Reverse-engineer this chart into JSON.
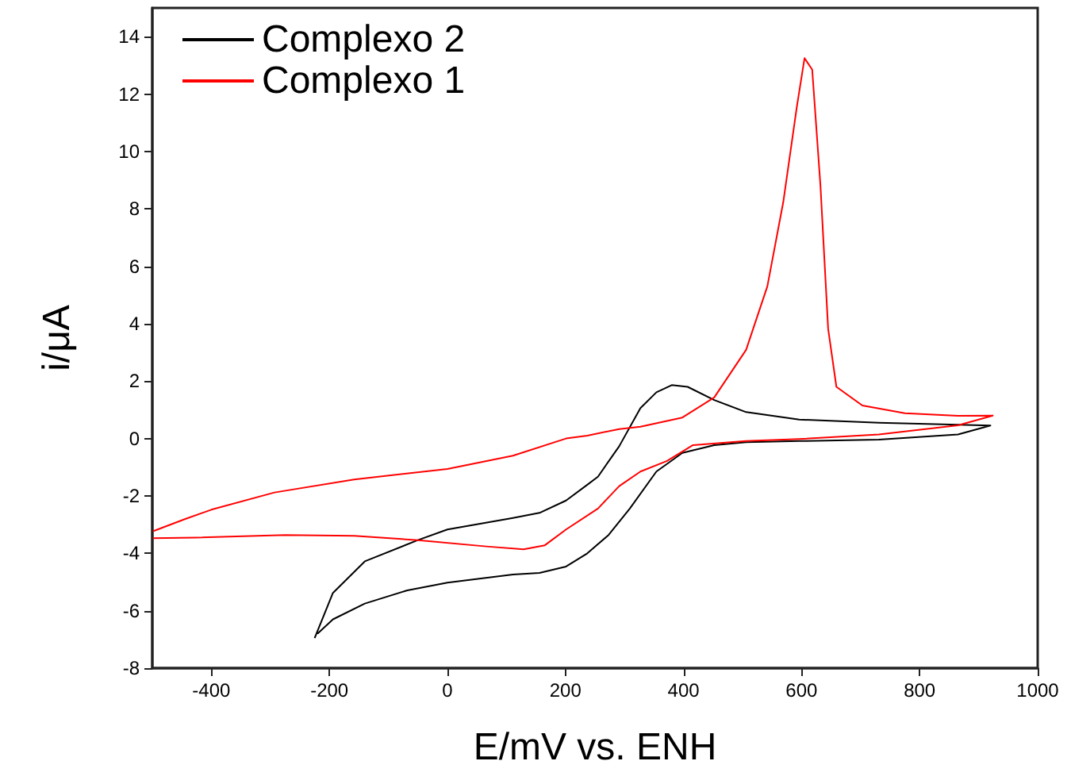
{
  "chart_data": {
    "type": "line",
    "xlabel": "E/mV vs. ENH",
    "ylabel": "i/μA",
    "xlim": [
      -500,
      1000
    ],
    "xticks": [
      -400,
      -200,
      0,
      200,
      400,
      600,
      800,
      1000
    ],
    "ylim": [
      -8,
      15
    ],
    "yticks": [
      -8,
      -6,
      -4,
      -2,
      0,
      2,
      4,
      6,
      8,
      10,
      12,
      14
    ],
    "grid": false,
    "legend": "top left",
    "marker": "none",
    "line_style": "solid",
    "series": [
      {
        "name": "Complexo 2",
        "color": "#000000",
        "x": [
          -225,
          -194,
          -140,
          -50,
          0,
          111,
          156,
          201,
          237,
          255,
          291,
          327,
          354,
          380,
          407,
          452,
          506,
          596,
          731,
          920,
          865,
          731,
          596,
          506,
          452,
          398,
          354,
          309,
          273,
          237,
          201,
          156,
          111,
          0,
          -68,
          -140,
          -194,
          -220
        ],
        "values": [
          -6.95,
          -5.38,
          -4.28,
          -3.54,
          -3.17,
          -2.77,
          -2.59,
          -2.16,
          -1.61,
          -1.33,
          -0.27,
          1.06,
          1.61,
          1.86,
          1.8,
          1.34,
          0.92,
          0.66,
          0.55,
          0.45,
          0.14,
          -0.04,
          -0.09,
          -0.13,
          -0.23,
          -0.5,
          -1.15,
          -2.44,
          -3.36,
          -4.0,
          -4.46,
          -4.68,
          -4.74,
          -5.02,
          -5.29,
          -5.75,
          -6.3,
          -6.8
        ]
      },
      {
        "name": "Complexo 1",
        "color": "#ff0000",
        "x": [
          -499,
          -445,
          -400,
          -293,
          -158,
          0,
          111,
          201,
          237,
          291,
          327,
          398,
          452,
          506,
          542,
          569,
          592,
          605,
          618,
          632,
          645,
          659,
          703,
          775,
          865,
          924,
          865,
          731,
          596,
          506,
          416,
          372,
          327,
          291,
          255,
          201,
          165,
          129,
          66,
          -50,
          -158,
          -275,
          -427,
          -499
        ],
        "values": [
          -3.23,
          -2.81,
          -2.48,
          -1.88,
          -1.43,
          -1.06,
          -0.6,
          0.0,
          0.1,
          0.33,
          0.41,
          0.73,
          1.43,
          3.09,
          5.3,
          8.24,
          11.56,
          13.25,
          12.85,
          8.8,
          3.82,
          1.8,
          1.15,
          0.88,
          0.79,
          0.8,
          0.46,
          0.14,
          -0.02,
          -0.09,
          -0.23,
          -0.78,
          -1.15,
          -1.66,
          -2.44,
          -3.17,
          -3.72,
          -3.86,
          -3.76,
          -3.54,
          -3.39,
          -3.36,
          -3.45,
          -3.47
        ]
      }
    ]
  }
}
